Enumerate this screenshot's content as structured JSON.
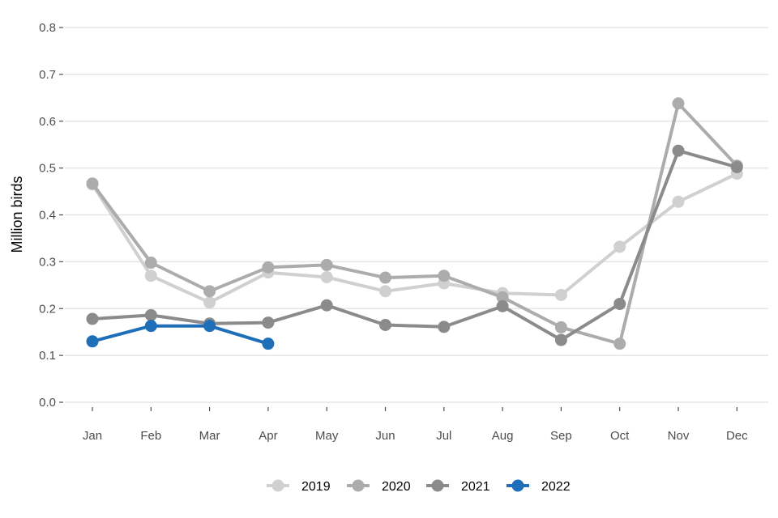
{
  "chart_data": {
    "type": "line",
    "title": "",
    "xlabel": "",
    "ylabel": "Million birds",
    "ylim": [
      0,
      0.8
    ],
    "yticks": [
      0.0,
      0.1,
      0.2,
      0.3,
      0.4,
      0.5,
      0.6,
      0.7,
      0.8
    ],
    "ytick_labels": [
      "0.0",
      "0.1",
      "0.2",
      "0.3",
      "0.4",
      "0.5",
      "0.6",
      "0.7",
      "0.8"
    ],
    "categories": [
      "Jan",
      "Feb",
      "Mar",
      "Apr",
      "May",
      "Jun",
      "Jul",
      "Aug",
      "Sep",
      "Oct",
      "Nov",
      "Dec"
    ],
    "grid": true,
    "legend_position": "bottom",
    "series": [
      {
        "name": "2019",
        "color": "#d0d0d0",
        "values": [
          0.465,
          0.27,
          0.213,
          0.277,
          0.267,
          0.237,
          0.254,
          0.233,
          0.229,
          0.332,
          0.428,
          0.488
        ]
      },
      {
        "name": "2020",
        "color": "#acacac",
        "values": [
          0.467,
          0.298,
          0.237,
          0.288,
          0.293,
          0.266,
          0.27,
          0.224,
          0.16,
          0.125,
          0.638,
          0.505
        ]
      },
      {
        "name": "2021",
        "color": "#8c8b8b",
        "values": [
          0.178,
          0.186,
          0.168,
          0.17,
          0.207,
          0.165,
          0.161,
          0.205,
          0.133,
          0.21,
          0.537,
          0.502
        ]
      },
      {
        "name": "2022",
        "color": "#1f6fb8",
        "values": [
          0.13,
          0.163,
          0.163,
          0.125,
          null,
          null,
          null,
          null,
          null,
          null,
          null,
          null
        ]
      }
    ]
  }
}
